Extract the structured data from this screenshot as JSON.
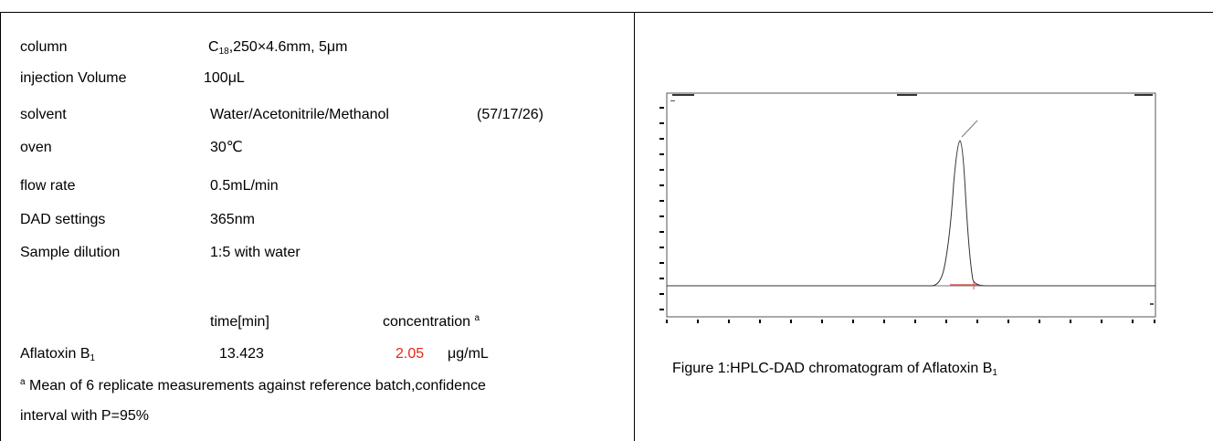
{
  "params": [
    {
      "label": "column",
      "value_pre": "C",
      "value_sub": "18",
      "value_post": ",250×4.6mm, 5μm"
    },
    {
      "label": "injection Volume",
      "value": "100μL"
    },
    {
      "label": "solvent",
      "value": "Water/Acetonitrile/Methanol",
      "extra": "(57/17/26)"
    },
    {
      "label": "oven",
      "value": "30℃"
    },
    {
      "label": "flow rate",
      "value": "0.5mL/min"
    },
    {
      "label": "DAD settings",
      "value": "365nm"
    },
    {
      "label": "Sample dilution",
      "value": "1:5 with water"
    }
  ],
  "results": {
    "header_time": "time[min]",
    "header_conc": "concentration",
    "header_conc_sup": "a",
    "analyte_pre": "Aflatoxin B",
    "analyte_sub": "1",
    "time": "13.423",
    "concentration": "2.05",
    "unit": "μg/mL",
    "note_sup": "a",
    "note_line1": "Mean of 6 replicate measurements against reference batch,confidence",
    "note_line2": "interval with P=95%"
  },
  "figure": {
    "caption_pre": "Figure 1:HPLC-DAD chromatogram of Aflatoxin B",
    "caption_sub": "1",
    "colors": {
      "trace": "#333333",
      "baseline": "#d9534f",
      "axis": "#000000"
    }
  }
}
